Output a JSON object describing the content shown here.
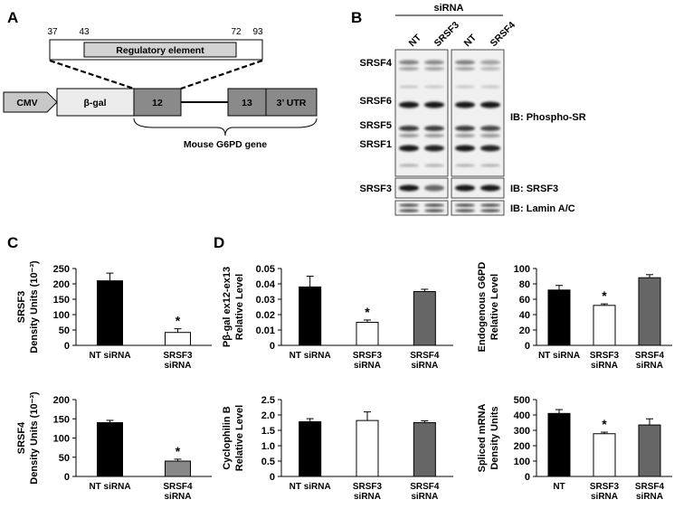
{
  "panel_letters": {
    "a": "A",
    "b": "B",
    "c": "C",
    "d": "D"
  },
  "construct": {
    "pos_37": "37",
    "pos_43": "43",
    "pos_72": "72",
    "pos_93": "93",
    "regulatory_label": "Regulatory element",
    "cmv": "CMV",
    "bgal": "β-gal",
    "exon12": "12",
    "exon13": "13",
    "utr": "3’ UTR",
    "gene_label": "Mouse G6PD gene"
  },
  "blot": {
    "header": "siRNA",
    "lanes": [
      "NT",
      "SRSF3",
      "NT",
      "SRSF4"
    ],
    "band_labels": [
      "SRSF4",
      "SRSF6",
      "SRSF5",
      "SRSF1",
      "SRSF3"
    ],
    "ib_phospho": "IB: Phospho-SR",
    "ib_srsf3": "IB: SRSF3",
    "ib_lamin": "IB: Lamin A/C"
  },
  "chart_data": [
    {
      "type": "bar",
      "panel": "C",
      "ylabel": [
        "SRSF3",
        "Density Units (10⁻³)"
      ],
      "categories": [
        [
          "NT siRNA"
        ],
        [
          "SRSF3",
          "siRNA"
        ]
      ],
      "values": [
        210,
        42
      ],
      "errors": [
        25,
        12
      ],
      "colors": [
        "#000000",
        "#ffffff"
      ],
      "significance": [
        "",
        "*"
      ],
      "ylim": [
        0,
        250
      ],
      "ticks": [
        "0",
        "50",
        "100",
        "150",
        "200",
        "250"
      ]
    },
    {
      "type": "bar",
      "panel": "C",
      "ylabel": [
        "SRSF4",
        "Density Units (10⁻³)"
      ],
      "categories": [
        [
          "NT siRNA"
        ],
        [
          "SRSF4",
          "siRNA"
        ]
      ],
      "values": [
        140,
        40
      ],
      "errors": [
        6,
        5
      ],
      "colors": [
        "#000000",
        "#888888"
      ],
      "significance": [
        "",
        "*"
      ],
      "ylim": [
        0,
        200
      ],
      "ticks": [
        "0",
        "50",
        "100",
        "150",
        "200"
      ]
    },
    {
      "type": "bar",
      "panel": "D",
      "ylabel": [
        "Pβ-gal ex12-ex13",
        "Relative Level"
      ],
      "categories": [
        [
          "NT siRNA"
        ],
        [
          "SRSF3",
          "siRNA"
        ],
        [
          "SRSF4",
          "siRNA"
        ]
      ],
      "values": [
        0.038,
        0.015,
        0.035
      ],
      "errors": [
        0.007,
        0.0015,
        0.0015
      ],
      "colors": [
        "#000000",
        "#ffffff",
        "#666666"
      ],
      "significance": [
        "",
        "*",
        ""
      ],
      "ylim": [
        0,
        0.05
      ],
      "ticks": [
        "0",
        "0.01",
        "0.02",
        "0.03",
        "0.04",
        "0.05"
      ]
    },
    {
      "type": "bar",
      "panel": "D",
      "ylabel": [
        "Endogenous G6PD",
        "Relative Level"
      ],
      "categories": [
        [
          "NT siRNA"
        ],
        [
          "SRSF3",
          "siRNA"
        ],
        [
          "SRSF4",
          "siRNA"
        ]
      ],
      "values": [
        72,
        52,
        88
      ],
      "errors": [
        6,
        2,
        4
      ],
      "colors": [
        "#000000",
        "#ffffff",
        "#666666"
      ],
      "significance": [
        "",
        "*",
        ""
      ],
      "ylim": [
        0,
        100
      ],
      "ticks": [
        "0",
        "20",
        "40",
        "60",
        "80",
        "100"
      ]
    },
    {
      "type": "bar",
      "panel": "D",
      "ylabel": [
        "Cyclophilin B",
        "Relative Level"
      ],
      "categories": [
        [
          "NT siRNA"
        ],
        [
          "SRSF3",
          "siRNA"
        ],
        [
          "SRSF4",
          "siRNA"
        ]
      ],
      "values": [
        1.78,
        1.82,
        1.75
      ],
      "errors": [
        0.1,
        0.28,
        0.06
      ],
      "colors": [
        "#000000",
        "#ffffff",
        "#666666"
      ],
      "significance": [
        "",
        "",
        ""
      ],
      "ylim": [
        0,
        2.5
      ],
      "ticks": [
        "0",
        "0.5",
        "1.0",
        "1.5",
        "2.0",
        "2.5"
      ]
    },
    {
      "type": "bar",
      "panel": "D",
      "ylabel": [
        "Spliced mRNA",
        "Density Units"
      ],
      "categories": [
        [
          "NT"
        ],
        [
          "SRSF3",
          "siRNA"
        ],
        [
          "SRSF4",
          "siRNA"
        ]
      ],
      "values": [
        410,
        278,
        335
      ],
      "errors": [
        25,
        10,
        40
      ],
      "colors": [
        "#000000",
        "#ffffff",
        "#666666"
      ],
      "significance": [
        "",
        "*",
        ""
      ],
      "ylim": [
        0,
        500
      ],
      "ticks": [
        "0",
        "100",
        "200",
        "300",
        "400",
        "500"
      ]
    }
  ]
}
